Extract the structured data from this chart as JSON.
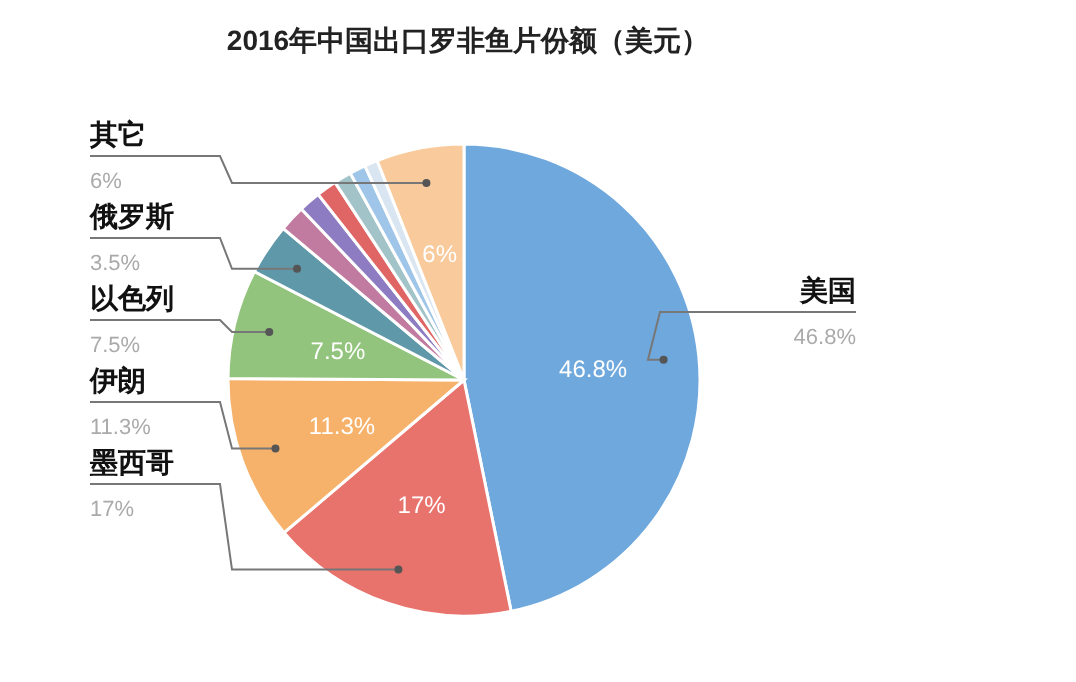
{
  "chart_data": {
    "type": "pie",
    "title": "2016年中国出口罗非鱼片份额（美元）",
    "categories": [
      "美国",
      "墨西哥",
      "伊朗",
      "以色列",
      "俄罗斯",
      null,
      null,
      null,
      null,
      null,
      null,
      "其它"
    ],
    "values": [
      46.8,
      17,
      11.3,
      7.5,
      3.5,
      1.8,
      1.5,
      1.4,
      1.2,
      1.1,
      0.9,
      6
    ],
    "colors": [
      "#6fa8dc",
      "#e8736d",
      "#f6b26b",
      "#93c47d",
      "#5f98a9",
      "#c27ba0",
      "#8e7cc3",
      "#e06666",
      "#a2c4c9",
      "#9fc5e8",
      "#d9e6f2",
      "#f9cb9c"
    ],
    "value_labels": [
      "46.8%",
      "17%",
      "11.3%",
      "7.5%",
      "3.5%",
      null,
      null,
      null,
      null,
      null,
      null,
      "6%"
    ]
  }
}
